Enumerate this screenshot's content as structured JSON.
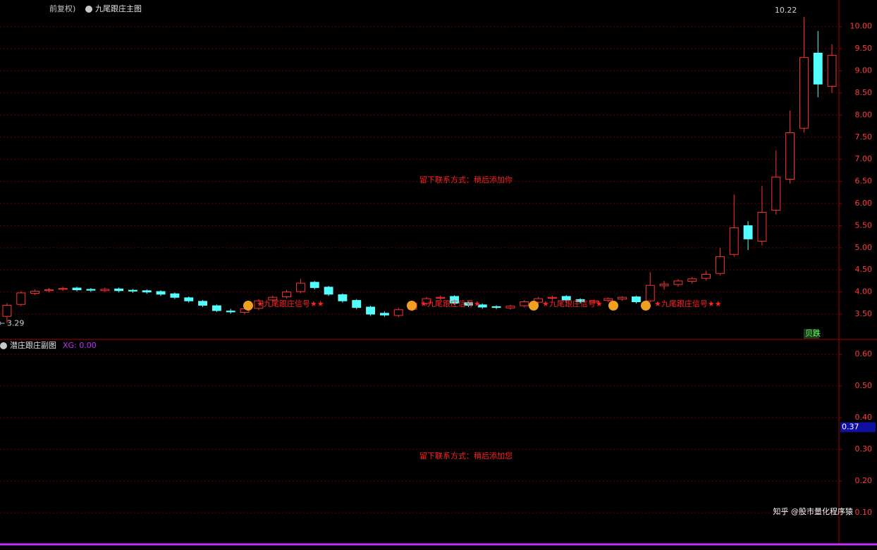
{
  "chart_data": [
    {
      "type": "candlestick",
      "title": "九尾跟庄主图",
      "subtitle": "前复权)",
      "open": [
        3.45,
        3.72,
        3.97,
        4.03,
        4.06,
        4.09,
        4.06,
        4.03,
        4.07,
        4.04,
        4.03,
        4.01,
        3.96,
        3.87,
        3.79,
        3.69,
        3.57,
        3.54,
        3.63,
        3.82,
        3.89,
        4.01,
        4.22,
        4.11,
        3.94,
        3.81,
        3.66,
        3.52,
        3.47,
        3.61,
        3.74,
        3.86,
        3.9,
        3.76,
        3.71,
        3.67,
        3.64,
        3.69,
        3.77,
        3.86,
        3.9,
        3.83,
        3.77,
        3.81,
        3.84,
        3.89,
        3.8,
        4.14,
        4.17,
        4.24,
        4.31,
        4.42,
        4.85,
        5.5,
        5.15,
        5.85,
        6.55,
        7.7,
        9.4,
        8.65
      ],
      "high": [
        3.75,
        4.02,
        4.06,
        4.09,
        4.12,
        4.12,
        4.09,
        4.1,
        4.1,
        4.07,
        4.06,
        4.04,
        3.99,
        3.9,
        3.82,
        3.72,
        3.62,
        3.66,
        3.84,
        3.92,
        4.05,
        4.3,
        4.25,
        4.14,
        3.97,
        3.84,
        3.69,
        3.56,
        3.64,
        3.79,
        3.89,
        3.92,
        3.93,
        3.79,
        3.74,
        3.7,
        3.71,
        3.82,
        3.89,
        3.92,
        3.93,
        3.86,
        3.83,
        3.88,
        3.91,
        3.92,
        4.45,
        4.25,
        4.29,
        4.34,
        4.48,
        5.0,
        6.2,
        5.6,
        6.4,
        7.2,
        8.1,
        10.22,
        9.9,
        9.6
      ],
      "low": [
        3.29,
        3.68,
        3.93,
        3.99,
        4.02,
        4.01,
        4.0,
        4.0,
        3.99,
        3.98,
        3.96,
        3.91,
        3.84,
        3.76,
        3.66,
        3.55,
        3.51,
        3.5,
        3.59,
        3.78,
        3.85,
        3.97,
        4.06,
        3.91,
        3.76,
        3.61,
        3.46,
        3.44,
        3.43,
        3.57,
        3.7,
        3.82,
        3.71,
        3.66,
        3.62,
        3.61,
        3.6,
        3.65,
        3.73,
        3.82,
        3.78,
        3.74,
        3.73,
        3.77,
        3.8,
        3.74,
        3.76,
        4.05,
        4.12,
        4.19,
        4.26,
        4.38,
        4.8,
        4.95,
        5.05,
        5.75,
        6.45,
        7.6,
        8.4,
        8.5
      ],
      "close": [
        3.7,
        3.98,
        4.02,
        4.05,
        4.08,
        4.05,
        4.04,
        4.06,
        4.03,
        4.02,
        4.0,
        3.95,
        3.88,
        3.8,
        3.7,
        3.58,
        3.55,
        3.62,
        3.8,
        3.88,
        4.0,
        4.2,
        4.1,
        3.95,
        3.8,
        3.65,
        3.5,
        3.48,
        3.6,
        3.75,
        3.85,
        3.88,
        3.75,
        3.7,
        3.66,
        3.65,
        3.68,
        3.78,
        3.85,
        3.88,
        3.82,
        3.78,
        3.8,
        3.85,
        3.88,
        3.78,
        4.15,
        4.18,
        4.25,
        4.3,
        4.4,
        4.8,
        5.45,
        5.2,
        5.8,
        6.6,
        7.6,
        9.3,
        8.7,
        9.35
      ],
      "up_color": "#ff3030",
      "down_color": "#54ffff",
      "ylim": [
        2.96,
        10.6
      ],
      "yticks": [
        {
          "value": 3.5,
          "label": "3.50"
        },
        {
          "value": 4,
          "label": "4.00"
        },
        {
          "value": 4.5,
          "label": "4.50"
        },
        {
          "value": 5,
          "label": "5.00"
        },
        {
          "value": 5.5,
          "label": "5.50"
        },
        {
          "value": 6,
          "label": "6.00"
        },
        {
          "value": 6.5,
          "label": "6.50"
        },
        {
          "value": 7,
          "label": "7.00"
        },
        {
          "value": 7.5,
          "label": "7.50"
        },
        {
          "value": 8,
          "label": "8.00"
        },
        {
          "value": 8.5,
          "label": "8.50"
        },
        {
          "value": 9,
          "label": "9.00"
        },
        {
          "value": 9.5,
          "label": "9.50"
        },
        {
          "value": 10,
          "label": "10.00"
        }
      ],
      "grid": true,
      "annotation": "留下联系方式：稍后添加你",
      "signals": [
        "★九尾跟庄信号★★",
        "★九尾跟庄信号★",
        "★九尾跟庄信号★",
        "★九尾跟庄信号★★"
      ],
      "badge": "贝跌"
    },
    {
      "type": "indicator",
      "title": "潜庄跟庄副图",
      "indicator_label": "XG: 0.00",
      "current_value": 0.37,
      "ylim": [
        0.007,
        0.647
      ],
      "yticks": [
        {
          "value": 0.1,
          "label": "0.10"
        },
        {
          "value": 0.2,
          "label": "0.20"
        },
        {
          "value": 0.3,
          "label": "0.30"
        },
        {
          "value": 0.4,
          "label": "0.40"
        },
        {
          "value": 0.5,
          "label": "0.50"
        },
        {
          "value": 0.6,
          "label": "0.60"
        }
      ],
      "grid": true,
      "annotation": "留下联系方式：稍后添加您"
    }
  ],
  "watermark": "知乎 @股市量化程序猿"
}
